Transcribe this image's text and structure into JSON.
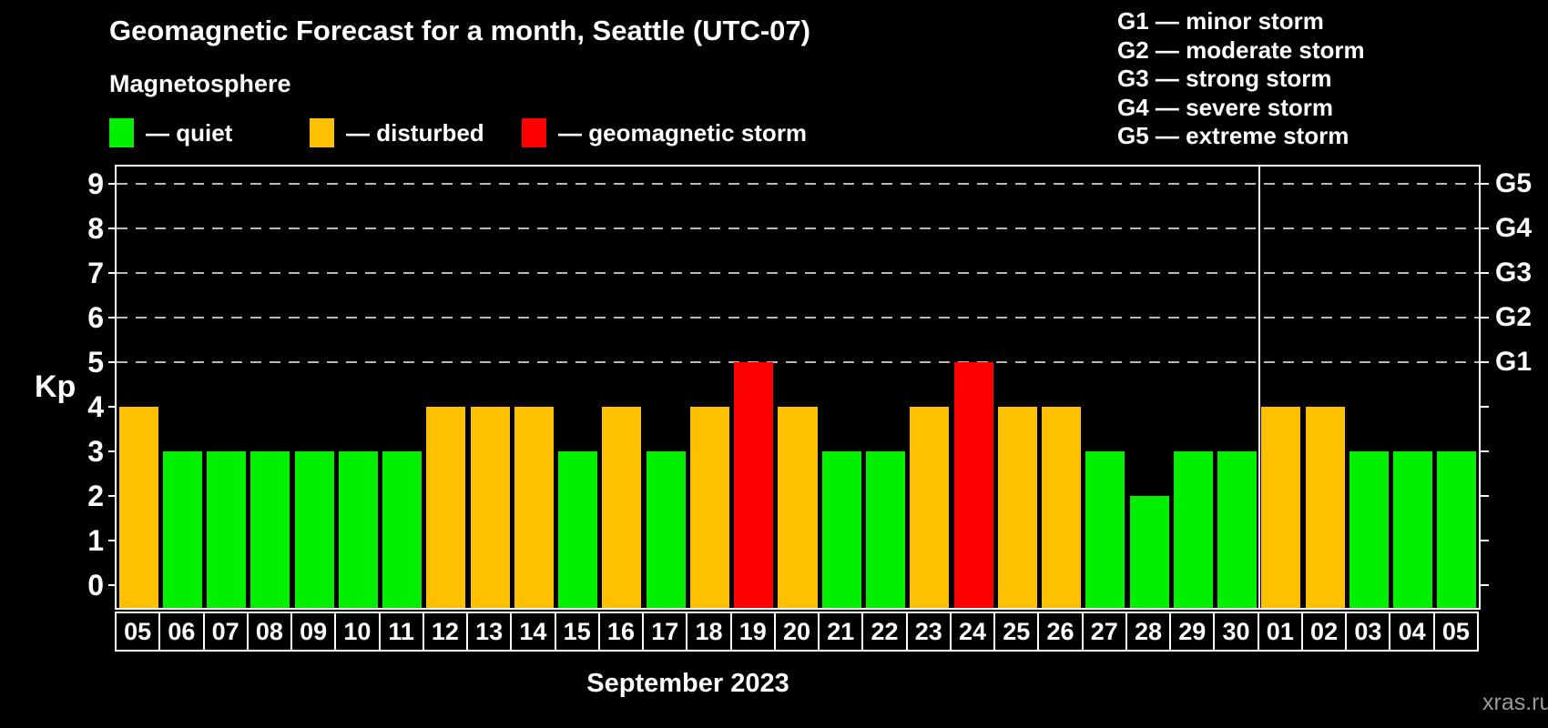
{
  "title": "Geomagnetic Forecast for a month, Seattle (UTC-07)",
  "legend": {
    "heading": "Magnetosphere",
    "items": [
      {
        "key": "quiet",
        "label": "— quiet"
      },
      {
        "key": "disturbed",
        "label": "— disturbed"
      },
      {
        "key": "storm",
        "label": "— geomagnetic storm"
      }
    ]
  },
  "g_legend": {
    "lines": [
      "G1 — minor storm",
      "G2 — moderate storm",
      "G3 — strong storm",
      "G4 — severe storm",
      "G5 — extreme storm"
    ]
  },
  "watermark": "xras.ru",
  "chart_data": {
    "type": "bar",
    "title": "Geomagnetic Forecast for a month, Seattle (UTC-07)",
    "ylabel": "Kp",
    "xlabel": "September 2023",
    "ylim": [
      0,
      9
    ],
    "yticks": [
      0,
      1,
      2,
      3,
      4,
      5,
      6,
      7,
      8,
      9
    ],
    "gridlines_at": [
      5,
      6,
      7,
      8,
      9
    ],
    "grid": "dashed horizontal at storm levels only",
    "legend_position": "top",
    "right_axis": [
      {
        "kp": 5,
        "label": "G1"
      },
      {
        "kp": 6,
        "label": "G2"
      },
      {
        "kp": 7,
        "label": "G3"
      },
      {
        "kp": 8,
        "label": "G4"
      },
      {
        "kp": 9,
        "label": "G5"
      }
    ],
    "categories": [
      "05",
      "06",
      "07",
      "08",
      "09",
      "10",
      "11",
      "12",
      "13",
      "14",
      "15",
      "16",
      "17",
      "18",
      "19",
      "20",
      "21",
      "22",
      "23",
      "24",
      "25",
      "26",
      "27",
      "28",
      "29",
      "30",
      "01",
      "02",
      "03",
      "04",
      "05"
    ],
    "values": [
      4,
      3,
      3,
      3,
      3,
      3,
      3,
      4,
      4,
      4,
      3,
      4,
      3,
      4,
      5,
      4,
      3,
      3,
      4,
      5,
      4,
      4,
      3,
      2,
      3,
      3,
      4,
      4,
      3,
      3,
      3
    ],
    "states": [
      "disturbed",
      "quiet",
      "quiet",
      "quiet",
      "quiet",
      "quiet",
      "quiet",
      "disturbed",
      "disturbed",
      "disturbed",
      "quiet",
      "disturbed",
      "quiet",
      "disturbed",
      "storm",
      "disturbed",
      "quiet",
      "quiet",
      "disturbed",
      "storm",
      "disturbed",
      "disturbed",
      "quiet",
      "quiet",
      "quiet",
      "quiet",
      "disturbed",
      "disturbed",
      "quiet",
      "quiet",
      "quiet"
    ],
    "colors": {
      "quiet": "#00f000",
      "disturbed": "#ffc000",
      "storm": "#ff0000",
      "gridline": "#b8b8b8",
      "axis": "#ffffff",
      "background": "#000000",
      "watermark": "#9a9a9a"
    },
    "month_separator_before_index": 26
  }
}
